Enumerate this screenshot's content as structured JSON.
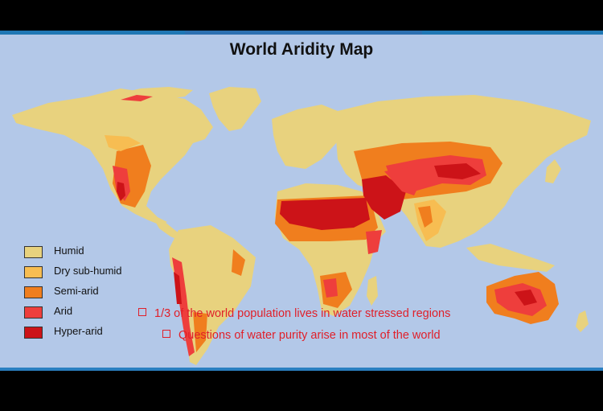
{
  "title": "World Aridity Map",
  "legend": [
    {
      "label": "Humid",
      "color": "#e8d27e"
    },
    {
      "label": "Dry sub-humid",
      "color": "#f7bd52"
    },
    {
      "label": "Semi-arid",
      "color": "#f07e1e"
    },
    {
      "label": "Arid",
      "color": "#ee3e3c"
    },
    {
      "label": "Hyper-arid",
      "color": "#cc1318"
    }
  ],
  "bullets": [
    "1/3 of the world population lives in water stressed regions",
    "Questions of water purity arise in most of the world"
  ],
  "colors": {
    "ocean": "#b3c8e8",
    "text_accent": "#e0202a"
  }
}
